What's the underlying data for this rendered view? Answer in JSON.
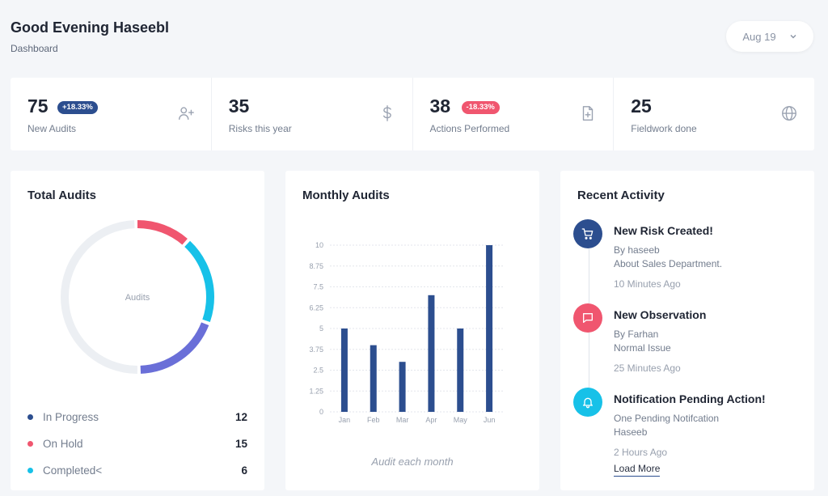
{
  "header": {
    "greeting": "Good Evening Haseebl",
    "subtitle": "Dashboard"
  },
  "date_selector": {
    "value": "Aug 19",
    "icon": "chevron-down-icon"
  },
  "stats": [
    {
      "value": "75",
      "label": "New Audits",
      "badge": "+18.33%",
      "badge_type": "up",
      "icon": "user-plus-icon"
    },
    {
      "value": "35",
      "label": "Risks this year",
      "badge": "",
      "icon": "dollar-icon"
    },
    {
      "value": "38",
      "label": "Actions Performed",
      "badge": "-18.33%",
      "badge_type": "down",
      "icon": "file-plus-icon"
    },
    {
      "value": "25",
      "label": "Fieldwork done",
      "badge": "",
      "icon": "globe-icon"
    }
  ],
  "total_audits": {
    "title": "Total Audits",
    "center_label": "Audits",
    "legend": [
      {
        "label": "In Progress",
        "value": "12",
        "color": "#2c4e8f"
      },
      {
        "label": "On Hold",
        "value": "15",
        "color": "#f0566f"
      },
      {
        "label": "Completed<",
        "value": "6",
        "color": "#17c1e8"
      }
    ]
  },
  "monthly_audits": {
    "title": "Monthly Audits",
    "caption": "Audit each month"
  },
  "chart_data": [
    {
      "type": "pie",
      "title": "Total Audits",
      "center_label": "Audits",
      "segments": [
        {
          "name": "On Hold",
          "color": "#f0566f",
          "fraction": 0.12
        },
        {
          "name": "Completed<",
          "color": "#17c1e8",
          "fraction": 0.19
        },
        {
          "name": "In Progress",
          "color": "#6a6fd8",
          "fraction": 0.19
        },
        {
          "name": "",
          "color": "#eceff3",
          "fraction": 0.5
        }
      ]
    },
    {
      "type": "bar",
      "title": "Monthly Audits",
      "categories": [
        "Jan",
        "Feb",
        "Mar",
        "Apr",
        "May",
        "Jun"
      ],
      "values": [
        5,
        4,
        3,
        7,
        5,
        10
      ],
      "yticks": [
        "0",
        "1.25",
        "2.5",
        "3.75",
        "5",
        "6.25",
        "7.5",
        "8.75",
        "10"
      ],
      "ylim": [
        0,
        10
      ],
      "color": "#2c4e8f",
      "caption": "Audit each month"
    }
  ],
  "recent_activity": {
    "title": "Recent Activity",
    "items": [
      {
        "title": "New Risk Created!",
        "lines": [
          "By haseeb",
          "About Sales Department."
        ],
        "time": "10 Minutes Ago",
        "icon": "cart-icon",
        "color": "#2c4e8f"
      },
      {
        "title": "New Observation",
        "lines": [
          "By Farhan",
          "Normal Issue"
        ],
        "time": "25 Minutes Ago",
        "icon": "message-icon",
        "color": "#f0566f"
      },
      {
        "title": "Notification Pending Action!",
        "lines": [
          "One Pending Notifcation",
          "Haseeb"
        ],
        "time": "2 Hours Ago",
        "icon": "bell-icon",
        "color": "#17c1e8"
      }
    ],
    "load_more": "Load More"
  }
}
